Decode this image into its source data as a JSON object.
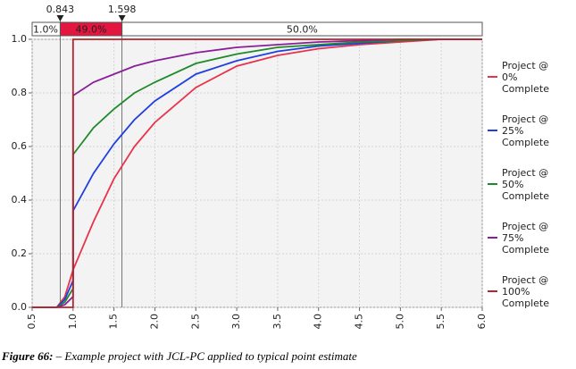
{
  "chart_data": {
    "type": "line",
    "x": [
      0.5,
      0.8,
      0.9,
      1.0,
      1.0,
      1.25,
      1.5,
      1.75,
      2.0,
      2.5,
      3.0,
      3.5,
      4.0,
      4.5,
      5.0,
      5.5,
      6.0
    ],
    "series": [
      {
        "name": "Project @ 0% Complete",
        "color": "#e8334a",
        "values": [
          0,
          0,
          0.04,
          0.14,
          0.14,
          0.32,
          0.48,
          0.6,
          0.69,
          0.82,
          0.9,
          0.94,
          0.965,
          0.98,
          0.99,
          1.0,
          1.0
        ]
      },
      {
        "name": "Project @ 25% Complete",
        "color": "#1f3fe0",
        "values": [
          0,
          0,
          0.03,
          0.1,
          0.36,
          0.5,
          0.61,
          0.7,
          0.77,
          0.87,
          0.92,
          0.955,
          0.975,
          0.985,
          0.995,
          1.0,
          1.0
        ]
      },
      {
        "name": "Project @ 50% Complete",
        "color": "#1e8a2a",
        "values": [
          0,
          0,
          0.02,
          0.07,
          0.57,
          0.67,
          0.74,
          0.8,
          0.84,
          0.91,
          0.945,
          0.97,
          0.98,
          0.99,
          0.995,
          1.0,
          1.0
        ]
      },
      {
        "name": "Project @ 75% Complete",
        "color": "#8a1e9a",
        "values": [
          0,
          0,
          0.01,
          0.04,
          0.79,
          0.84,
          0.87,
          0.9,
          0.92,
          0.95,
          0.97,
          0.98,
          0.99,
          0.995,
          1.0,
          1.0,
          1.0
        ]
      },
      {
        "name": "Project @ 100% Complete",
        "color": "#b3262d",
        "values": [
          0,
          0,
          0,
          0,
          1.0,
          1.0,
          1.0,
          1.0,
          1.0,
          1.0,
          1.0,
          1.0,
          1.0,
          1.0,
          1.0,
          1.0,
          1.0
        ]
      }
    ],
    "xlim": [
      0.5,
      6.0
    ],
    "xticks": [
      0.5,
      {
        "value": 1,
        "label": "1.0"
      },
      1.5,
      {
        "value": 2,
        "label": "2.0"
      },
      2.5,
      {
        "value": 3,
        "label": "3.0"
      },
      3.5,
      {
        "value": 4,
        "label": "4.0"
      },
      4.5,
      {
        "value": 5,
        "label": "5.0"
      },
      5.5,
      {
        "value": 6,
        "label": "6.0"
      }
    ],
    "ylim": [
      0,
      1
    ],
    "yticks": [
      {
        "value": 0,
        "label": "0.0"
      },
      0.2,
      0.4,
      0.6,
      0.8,
      {
        "value": 1,
        "label": "1.0"
      }
    ],
    "grid": true,
    "band": {
      "cuts": [
        0.843,
        1.598
      ],
      "values": [
        1,
        49,
        50
      ],
      "value_labels": [
        "1.0%",
        "49.0%",
        "50.0%"
      ],
      "colors": [
        "#ffffff",
        "#e3163f",
        "#ffffff"
      ]
    }
  },
  "caption": {
    "label": "Figure 66:",
    "text": "– Example project with JCL-PC applied to typical point estimate"
  }
}
